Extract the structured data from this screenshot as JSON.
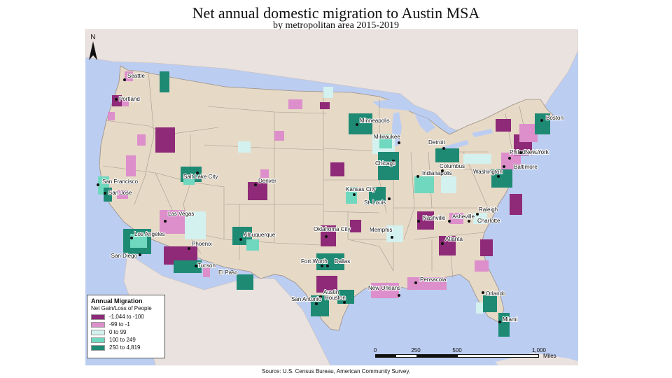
{
  "title": "Net annual domestic migration to Austin MSA",
  "subtitle": "by metropolitan area 2015-2019",
  "source": "Source:  U.S. Census Bureau, American Community Survey.",
  "north_label": "N",
  "legend": {
    "title": "Annual Migration",
    "subtitle": "Net Gain/Loss of People",
    "classes": [
      {
        "label": "-1,044 to -100",
        "color": "#8e2a77"
      },
      {
        "label": "-99 to -1",
        "color": "#dd8fcb"
      },
      {
        "label": "0 to 99",
        "color": "#d3f1ee"
      },
      {
        "label": "100 to 249",
        "color": "#6fd8bf"
      },
      {
        "label": "250 to 4,819",
        "color": "#1e8a74"
      }
    ]
  },
  "scale_bar": {
    "ticks": [
      "0",
      "250",
      "500",
      "1,000"
    ],
    "unit": "Miles"
  },
  "colors": {
    "water": "#bccdf2",
    "us_land": "#e6d9c6",
    "neighbor_land": "#e9e2de",
    "state_border": "#9a8f84"
  },
  "cities": [
    {
      "name": "Seattle",
      "cls": 4
    },
    {
      "name": "Portland",
      "cls": 0
    },
    {
      "name": "San Francisco",
      "cls": 4
    },
    {
      "name": "San Jose",
      "cls": 4
    },
    {
      "name": "Los Angeles",
      "cls": 4
    },
    {
      "name": "San Diego",
      "cls": 4
    },
    {
      "name": "Las Vegas",
      "cls": 1
    },
    {
      "name": "Salt Lake City",
      "cls": 4
    },
    {
      "name": "Phoenix",
      "cls": 0
    },
    {
      "name": "Tucson",
      "cls": 4
    },
    {
      "name": "Albuquerque",
      "cls": 4
    },
    {
      "name": "El Paso",
      "cls": 4
    },
    {
      "name": "Denver",
      "cls": 0
    },
    {
      "name": "Minneapolis",
      "cls": 4
    },
    {
      "name": "Milwaukee",
      "cls": 3
    },
    {
      "name": "Chicago",
      "cls": 4
    },
    {
      "name": "Detroit",
      "cls": 4
    },
    {
      "name": "Kansas City",
      "cls": 4
    },
    {
      "name": "St. Louis",
      "cls": 4
    },
    {
      "name": "Oklahoma City",
      "cls": 0
    },
    {
      "name": "Memphis",
      "cls": 2
    },
    {
      "name": "Fort Worth",
      "cls": 4
    },
    {
      "name": "Dallas",
      "cls": 4
    },
    {
      "name": "Austin",
      "cls": 0
    },
    {
      "name": "San Antonio",
      "cls": 4
    },
    {
      "name": "Houston",
      "cls": 4
    },
    {
      "name": "New Orleans",
      "cls": 1
    },
    {
      "name": "Indianapolis",
      "cls": 3
    },
    {
      "name": "Columbus",
      "cls": 3
    },
    {
      "name": "Nashville",
      "cls": 0
    },
    {
      "name": "Atlanta",
      "cls": 0
    },
    {
      "name": "Pensacola",
      "cls": 0
    },
    {
      "name": "Orlando",
      "cls": 4
    },
    {
      "name": "Miami",
      "cls": 4
    },
    {
      "name": "Asheville",
      "cls": 0
    },
    {
      "name": "Raleigh",
      "cls": 2
    },
    {
      "name": "Charlotte",
      "cls": 2
    },
    {
      "name": "Washington",
      "cls": 4
    },
    {
      "name": "Baltimore",
      "cls": 0
    },
    {
      "name": "Philadelphia",
      "cls": 1
    },
    {
      "name": "New York",
      "cls": 0
    },
    {
      "name": "Boston",
      "cls": 4
    }
  ]
}
